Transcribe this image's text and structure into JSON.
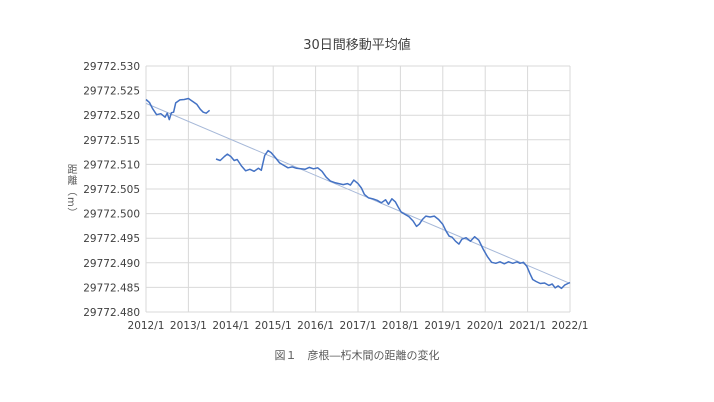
{
  "chart_data": {
    "type": "line",
    "title": "30日間移動平均値",
    "ylabel": "距離（m）",
    "xlabel": "",
    "caption": "図１　彦根―朽木間の距離の変化",
    "ylim": [
      29772.48,
      29772.53
    ],
    "yticks": [
      "29772.480",
      "29772.485",
      "29772.490",
      "29772.495",
      "29772.500",
      "29772.505",
      "29772.510",
      "29772.515",
      "29772.520",
      "29772.525",
      "29772.530"
    ],
    "xlim": [
      2012.0,
      2022.0
    ],
    "xticks": [
      "2012/1",
      "2013/1",
      "2014/1",
      "2015/1",
      "2016/1",
      "2017/1",
      "2018/1",
      "2019/1",
      "2020/1",
      "2021/1",
      "2022/1"
    ],
    "grid": true,
    "series": [
      {
        "color": "#4472c4",
        "segments": [
          [
            [
              2012.0,
              29772.5232
            ],
            [
              2012.08,
              29772.5226
            ],
            [
              2012.15,
              29772.5214
            ],
            [
              2012.25,
              29772.5201
            ],
            [
              2012.35,
              29772.5203
            ],
            [
              2012.45,
              29772.5196
            ],
            [
              2012.5,
              29772.5204
            ],
            [
              2012.55,
              29772.5191
            ],
            [
              2012.6,
              29772.5205
            ],
            [
              2012.65,
              29772.5206
            ],
            [
              2012.7,
              29772.5225
            ],
            [
              2012.8,
              29772.5231
            ],
            [
              2012.9,
              29772.5232
            ],
            [
              2013.0,
              29772.5234
            ],
            [
              2013.1,
              29772.5228
            ],
            [
              2013.2,
              29772.5222
            ],
            [
              2013.28,
              29772.5212
            ],
            [
              2013.35,
              29772.5206
            ],
            [
              2013.42,
              29772.5204
            ],
            [
              2013.5,
              29772.521
            ]
          ]
        ]
      },
      {
        "color": "#4472c4",
        "segments": [
          [
            [
              2013.65,
              29772.5111
            ],
            [
              2013.75,
              29772.5108
            ],
            [
              2013.85,
              29772.5116
            ],
            [
              2013.92,
              29772.5121
            ],
            [
              2014.0,
              29772.5116
            ],
            [
              2014.08,
              29772.5108
            ],
            [
              2014.15,
              29772.511
            ],
            [
              2014.25,
              29772.5097
            ],
            [
              2014.35,
              29772.5087
            ],
            [
              2014.45,
              29772.509
            ],
            [
              2014.55,
              29772.5086
            ],
            [
              2014.65,
              29772.5092
            ],
            [
              2014.72,
              29772.5088
            ],
            [
              2014.8,
              29772.5118
            ],
            [
              2014.88,
              29772.5128
            ],
            [
              2014.95,
              29772.5124
            ],
            [
              2015.05,
              29772.5114
            ],
            [
              2015.15,
              29772.5103
            ],
            [
              2015.25,
              29772.5098
            ],
            [
              2015.35,
              29772.5093
            ],
            [
              2015.45,
              29772.5095
            ],
            [
              2015.55,
              29772.5092
            ],
            [
              2015.65,
              29772.5091
            ],
            [
              2015.75,
              29772.509
            ],
            [
              2015.85,
              29772.5094
            ],
            [
              2015.95,
              29772.5091
            ],
            [
              2016.05,
              29772.5093
            ],
            [
              2016.15,
              29772.5086
            ],
            [
              2016.25,
              29772.5074
            ],
            [
              2016.35,
              29772.5066
            ],
            [
              2016.45,
              29772.5063
            ],
            [
              2016.55,
              29772.5061
            ],
            [
              2016.65,
              29772.5059
            ],
            [
              2016.75,
              29772.5061
            ],
            [
              2016.82,
              29772.5058
            ],
            [
              2016.9,
              29772.5068
            ],
            [
              2017.0,
              29772.5061
            ],
            [
              2017.08,
              29772.5052
            ],
            [
              2017.15,
              29772.5039
            ],
            [
              2017.25,
              29772.5032
            ],
            [
              2017.35,
              29772.503
            ],
            [
              2017.45,
              29772.5027
            ],
            [
              2017.55,
              29772.5022
            ],
            [
              2017.65,
              29772.5028
            ],
            [
              2017.72,
              29772.5019
            ],
            [
              2017.8,
              29772.503
            ],
            [
              2017.88,
              29772.5024
            ],
            [
              2017.95,
              29772.5013
            ],
            [
              2018.02,
              29772.5003
            ],
            [
              2018.1,
              29772.4999
            ],
            [
              2018.2,
              29772.4994
            ],
            [
              2018.3,
              29772.4985
            ],
            [
              2018.38,
              29772.4974
            ],
            [
              2018.45,
              29772.4979
            ],
            [
              2018.52,
              29772.4988
            ],
            [
              2018.6,
              29772.4995
            ],
            [
              2018.7,
              29772.4993
            ],
            [
              2018.8,
              29772.4995
            ],
            [
              2018.9,
              29772.4988
            ],
            [
              2019.0,
              29772.4978
            ],
            [
              2019.08,
              29772.4964
            ],
            [
              2019.15,
              29772.4954
            ],
            [
              2019.22,
              29772.4952
            ],
            [
              2019.3,
              29772.4944
            ],
            [
              2019.38,
              29772.4938
            ],
            [
              2019.45,
              29772.4948
            ],
            [
              2019.55,
              29772.4951
            ],
            [
              2019.65,
              29772.4944
            ],
            [
              2019.75,
              29772.4953
            ],
            [
              2019.85,
              29772.4946
            ],
            [
              2019.95,
              29772.4928
            ],
            [
              2020.05,
              29772.4913
            ],
            [
              2020.15,
              29772.4901
            ],
            [
              2020.25,
              29772.4899
            ],
            [
              2020.35,
              29772.4902
            ],
            [
              2020.45,
              29772.4898
            ],
            [
              2020.55,
              29772.4902
            ],
            [
              2020.65,
              29772.4899
            ],
            [
              2020.75,
              29772.4902
            ],
            [
              2020.82,
              29772.4899
            ],
            [
              2020.9,
              29772.4901
            ],
            [
              2020.98,
              29772.4893
            ],
            [
              2021.05,
              29772.4879
            ],
            [
              2021.12,
              29772.4866
            ],
            [
              2021.2,
              29772.4862
            ],
            [
              2021.3,
              29772.4858
            ],
            [
              2021.4,
              29772.4859
            ],
            [
              2021.5,
              29772.4854
            ],
            [
              2021.58,
              29772.4857
            ],
            [
              2021.65,
              29772.4849
            ],
            [
              2021.72,
              29772.4853
            ],
            [
              2021.8,
              29772.4848
            ],
            [
              2021.88,
              29772.4855
            ],
            [
              2021.95,
              29772.4858
            ],
            [
              2022.0,
              29772.486
            ]
          ]
        ]
      }
    ],
    "trendline": {
      "color": "#a6b8d8",
      "points": [
        [
          2012.0,
          29772.5224
        ],
        [
          2022.0,
          29772.4858
        ]
      ]
    }
  }
}
